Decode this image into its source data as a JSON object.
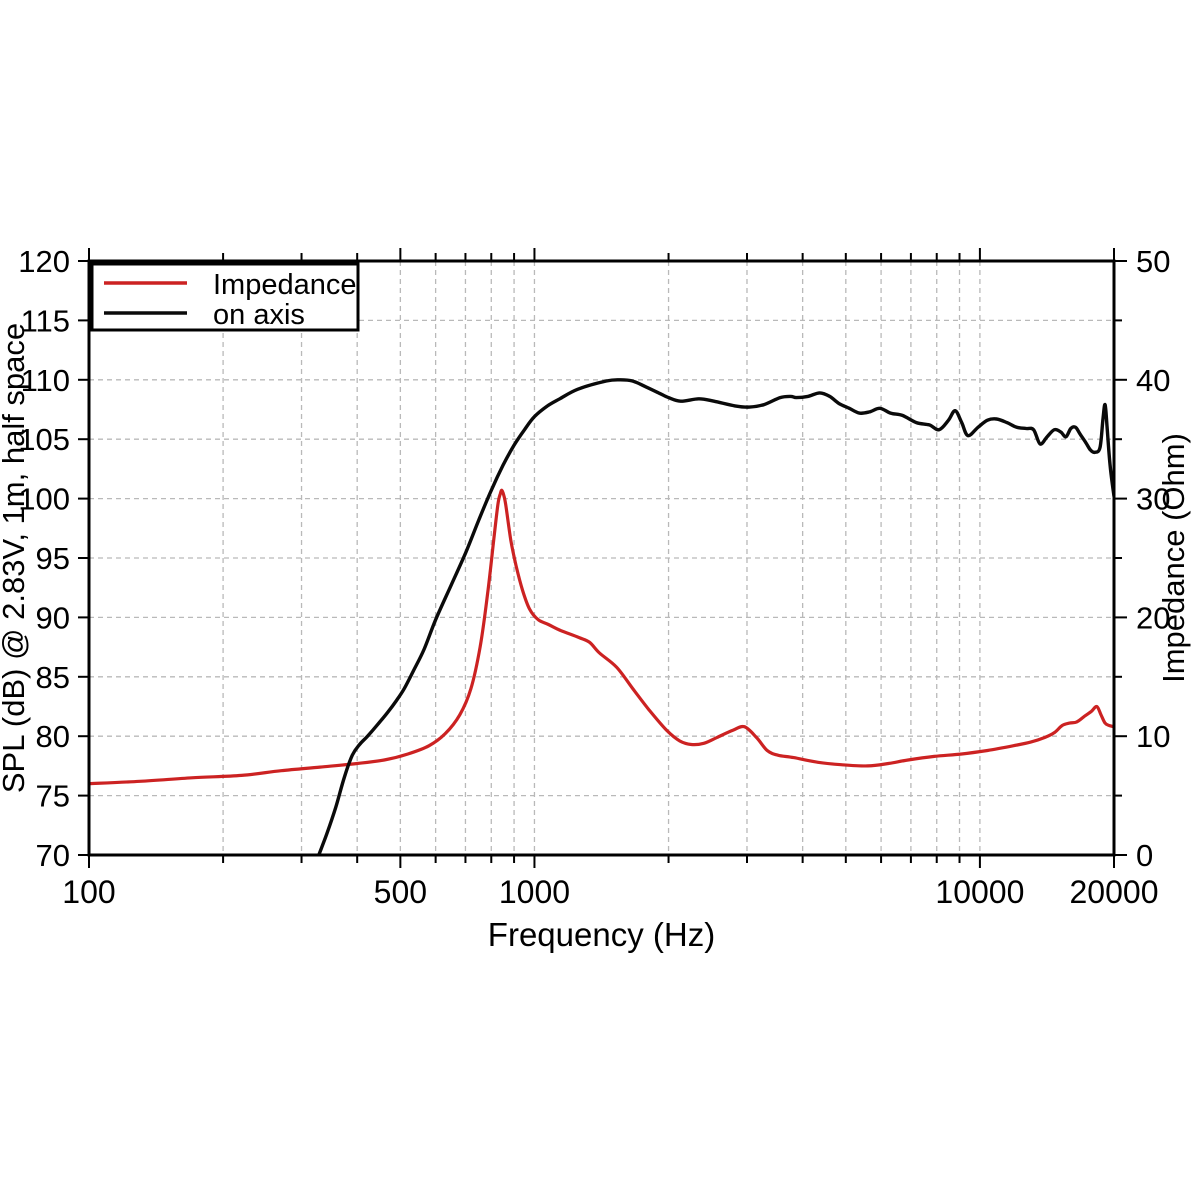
{
  "figure": {
    "background": "#ffffff",
    "frame_color": "#000000",
    "grid_color": "#b9b9b9"
  },
  "chart_data": {
    "type": "line",
    "title": "",
    "x_axis": {
      "label": "Frequency (Hz)",
      "scale": "log",
      "min": 100,
      "max": 20000,
      "tick_values": [
        100,
        500,
        1000,
        10000,
        20000
      ],
      "tick_labels": [
        "100",
        "500",
        "1000",
        "10000",
        "20000"
      ]
    },
    "y_left": {
      "label": "SPL (dB) @ 2.83V, 1m, half space",
      "min": 70,
      "max": 120,
      "tick_step": 5,
      "tick_values": [
        70,
        75,
        80,
        85,
        90,
        95,
        100,
        105,
        110,
        115,
        120
      ],
      "tick_labels": [
        "70",
        "75",
        "80",
        "85",
        "90",
        "95",
        "100",
        "105",
        "110",
        "115",
        "120"
      ]
    },
    "y_right": {
      "label": "Impedance (Ohm)",
      "min": 0,
      "max": 50,
      "tick_step": 10,
      "minor_tick_step": 5,
      "tick_values": [
        0,
        10,
        20,
        30,
        40,
        50
      ],
      "tick_labels": [
        "0",
        "10",
        "20",
        "30",
        "40",
        "50"
      ]
    },
    "grid": {
      "show": true,
      "style": "dashed"
    },
    "legend": {
      "position": "top-left",
      "entries": [
        {
          "label": "Impedance",
          "color": "#cc2222"
        },
        {
          "label": "on axis",
          "color": "#0a0a0a"
        }
      ]
    },
    "series": [
      {
        "name": "Impedance",
        "axis": "right",
        "unit": "Ohm",
        "color": "#cc2222",
        "points": [
          [
            100,
            6.0
          ],
          [
            130,
            6.2
          ],
          [
            170,
            6.5
          ],
          [
            220,
            6.7
          ],
          [
            270,
            7.1
          ],
          [
            330,
            7.4
          ],
          [
            400,
            7.7
          ],
          [
            460,
            8.0
          ],
          [
            520,
            8.5
          ],
          [
            580,
            9.2
          ],
          [
            630,
            10.2
          ],
          [
            680,
            11.8
          ],
          [
            720,
            14.0
          ],
          [
            755,
            17.5
          ],
          [
            785,
            22.0
          ],
          [
            810,
            26.5
          ],
          [
            828,
            29.5
          ],
          [
            838,
            30.4
          ],
          [
            845,
            30.7
          ],
          [
            853,
            30.3
          ],
          [
            862,
            29.5
          ],
          [
            885,
            26.5
          ],
          [
            910,
            24.3
          ],
          [
            940,
            22.3
          ],
          [
            975,
            20.7
          ],
          [
            1020,
            19.8
          ],
          [
            1075,
            19.4
          ],
          [
            1145,
            18.9
          ],
          [
            1260,
            18.3
          ],
          [
            1330,
            17.9
          ],
          [
            1400,
            17.0
          ],
          [
            1530,
            15.8
          ],
          [
            1670,
            13.9
          ],
          [
            1810,
            12.2
          ],
          [
            1980,
            10.5
          ],
          [
            2120,
            9.6
          ],
          [
            2250,
            9.3
          ],
          [
            2400,
            9.4
          ],
          [
            2570,
            9.9
          ],
          [
            2790,
            10.5
          ],
          [
            2960,
            10.8
          ],
          [
            3150,
            9.9
          ],
          [
            3330,
            8.8
          ],
          [
            3520,
            8.4
          ],
          [
            3820,
            8.2
          ],
          [
            4330,
            7.8
          ],
          [
            4880,
            7.6
          ],
          [
            5600,
            7.5
          ],
          [
            6230,
            7.7
          ],
          [
            6900,
            8.0
          ],
          [
            7900,
            8.3
          ],
          [
            9100,
            8.5
          ],
          [
            10400,
            8.8
          ],
          [
            11900,
            9.2
          ],
          [
            13000,
            9.5
          ],
          [
            14000,
            9.9
          ],
          [
            14700,
            10.3
          ],
          [
            15300,
            10.9
          ],
          [
            15900,
            11.1
          ],
          [
            16500,
            11.2
          ],
          [
            17200,
            11.7
          ],
          [
            17800,
            12.1
          ],
          [
            18300,
            12.5
          ],
          [
            18700,
            11.8
          ],
          [
            19100,
            11.1
          ],
          [
            19500,
            10.9
          ],
          [
            20000,
            10.8
          ]
        ]
      },
      {
        "name": "on axis",
        "axis": "left",
        "unit": "dB",
        "color": "#0a0a0a",
        "points": [
          [
            328,
            70.0
          ],
          [
            342,
            71.8
          ],
          [
            358,
            74.0
          ],
          [
            374,
            76.5
          ],
          [
            390,
            78.4
          ],
          [
            405,
            79.3
          ],
          [
            422,
            80.0
          ],
          [
            445,
            81.0
          ],
          [
            468,
            82.0
          ],
          [
            490,
            83.0
          ],
          [
            510,
            84.0
          ],
          [
            535,
            85.5
          ],
          [
            565,
            87.3
          ],
          [
            600,
            89.8
          ],
          [
            650,
            92.7
          ],
          [
            700,
            95.4
          ],
          [
            750,
            98.2
          ],
          [
            800,
            100.7
          ],
          [
            850,
            102.8
          ],
          [
            900,
            104.5
          ],
          [
            950,
            105.8
          ],
          [
            1000,
            106.9
          ],
          [
            1070,
            107.8
          ],
          [
            1140,
            108.4
          ],
          [
            1250,
            109.2
          ],
          [
            1450,
            109.9
          ],
          [
            1560,
            110.0
          ],
          [
            1660,
            109.9
          ],
          [
            1780,
            109.4
          ],
          [
            1900,
            108.9
          ],
          [
            2000,
            108.5
          ],
          [
            2130,
            108.2
          ],
          [
            2340,
            108.4
          ],
          [
            2530,
            108.2
          ],
          [
            2820,
            107.8
          ],
          [
            3040,
            107.7
          ],
          [
            3270,
            107.9
          ],
          [
            3560,
            108.5
          ],
          [
            3760,
            108.6
          ],
          [
            3870,
            108.5
          ],
          [
            4110,
            108.6
          ],
          [
            4370,
            108.9
          ],
          [
            4600,
            108.6
          ],
          [
            4830,
            108.0
          ],
          [
            5090,
            107.6
          ],
          [
            5360,
            107.2
          ],
          [
            5650,
            107.3
          ],
          [
            5960,
            107.6
          ],
          [
            6300,
            107.2
          ],
          [
            6700,
            107.0
          ],
          [
            7200,
            106.4
          ],
          [
            7700,
            106.2
          ],
          [
            8100,
            105.8
          ],
          [
            8500,
            106.6
          ],
          [
            8800,
            107.4
          ],
          [
            9100,
            106.4
          ],
          [
            9400,
            105.3
          ],
          [
            9900,
            106.0
          ],
          [
            10400,
            106.6
          ],
          [
            10900,
            106.7
          ],
          [
            11500,
            106.4
          ],
          [
            12100,
            106.0
          ],
          [
            12700,
            105.9
          ],
          [
            13200,
            105.8
          ],
          [
            13650,
            104.6
          ],
          [
            14150,
            105.2
          ],
          [
            14700,
            105.8
          ],
          [
            15200,
            105.6
          ],
          [
            15600,
            105.2
          ],
          [
            16000,
            105.9
          ],
          [
            16400,
            106.0
          ],
          [
            16800,
            105.4
          ],
          [
            17300,
            104.7
          ],
          [
            17700,
            104.1
          ],
          [
            18100,
            103.9
          ],
          [
            18600,
            104.3
          ],
          [
            18900,
            106.8
          ],
          [
            19100,
            107.9
          ],
          [
            19300,
            106.0
          ],
          [
            19600,
            102.8
          ],
          [
            20000,
            100.2
          ]
        ]
      }
    ]
  }
}
